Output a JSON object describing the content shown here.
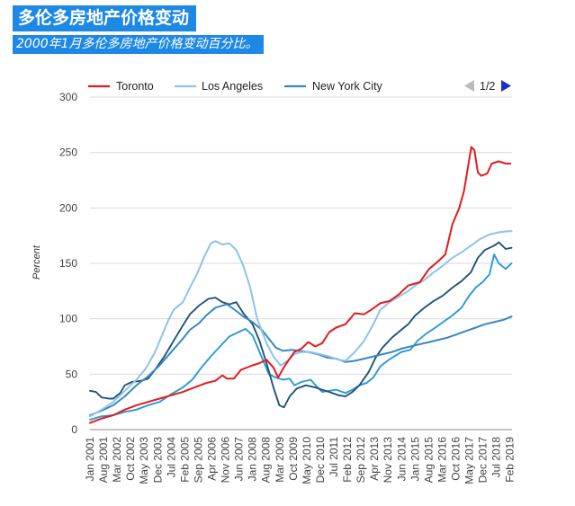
{
  "header": {
    "title": "多伦多房地产价格变动",
    "subtitle": "2000年1月多伦多房地产价格变动百分比。"
  },
  "legend": {
    "pager": "1/2"
  },
  "colors": {
    "toronto": "#e31b1b",
    "la": "#8cc4ea",
    "nyc": "#3b87c2",
    "s4": "#1f5578",
    "s5": "#2a9ad6",
    "grid": "#d9d9d9",
    "pager_prev": "#bbbbbb",
    "pager_next": "#1a2fc8"
  },
  "chart_data": {
    "type": "line",
    "ylabel": "Percent",
    "ylim": [
      0,
      300
    ],
    "yticks": [
      0,
      50,
      100,
      150,
      200,
      250,
      300
    ],
    "xlim": [
      2001.0,
      2019.17
    ],
    "xticks": [
      {
        "label": "Jan 2001",
        "t": 2001.0
      },
      {
        "label": "Aug 2001",
        "t": 2001.58
      },
      {
        "label": "Mar 2002",
        "t": 2002.17
      },
      {
        "label": "Oct 2002",
        "t": 2002.75
      },
      {
        "label": "May 2003",
        "t": 2003.33
      },
      {
        "label": "Dec 2003",
        "t": 2003.92
      },
      {
        "label": "Jul 2004",
        "t": 2004.5
      },
      {
        "label": "Feb 2005",
        "t": 2005.08
      },
      {
        "label": "Sep 2005",
        "t": 2005.67
      },
      {
        "label": "Apr 2006",
        "t": 2006.25
      },
      {
        "label": "Nov 2006",
        "t": 2006.83
      },
      {
        "label": "Jun 2007",
        "t": 2007.42
      },
      {
        "label": "Jan 2008",
        "t": 2008.0
      },
      {
        "label": "Aug 2008",
        "t": 2008.58
      },
      {
        "label": "Mar 2009",
        "t": 2009.17
      },
      {
        "label": "Oct 2009",
        "t": 2009.75
      },
      {
        "label": "May 2010",
        "t": 2010.33
      },
      {
        "label": "Dec 2010",
        "t": 2010.92
      },
      {
        "label": "Jul 2011",
        "t": 2011.5
      },
      {
        "label": "Feb 2012",
        "t": 2012.08
      },
      {
        "label": "Sep 2012",
        "t": 2012.67
      },
      {
        "label": "Apr 2013",
        "t": 2013.25
      },
      {
        "label": "Nov 2013",
        "t": 2013.83
      },
      {
        "label": "Jun 2014",
        "t": 2014.42
      },
      {
        "label": "Jan 2015",
        "t": 2015.0
      },
      {
        "label": "Aug 2015",
        "t": 2015.58
      },
      {
        "label": "Mar 2016",
        "t": 2016.17
      },
      {
        "label": "Oct 2016",
        "t": 2016.75
      },
      {
        "label": "May 2017",
        "t": 2017.33
      },
      {
        "label": "Dec 2017",
        "t": 2017.92
      },
      {
        "label": "Jul 2018",
        "t": 2018.5
      },
      {
        "label": "Feb 2019",
        "t": 2019.08
      }
    ],
    "series": [
      {
        "name": "Toronto",
        "colorKey": "toronto",
        "width": 2.0,
        "points": [
          [
            2001.0,
            6
          ],
          [
            2001.5,
            10
          ],
          [
            2002.0,
            13
          ],
          [
            2002.5,
            18
          ],
          [
            2003.0,
            22
          ],
          [
            2003.5,
            25
          ],
          [
            2004.0,
            28
          ],
          [
            2004.5,
            31
          ],
          [
            2005.0,
            34
          ],
          [
            2005.5,
            38
          ],
          [
            2006.0,
            42
          ],
          [
            2006.4,
            44
          ],
          [
            2006.7,
            49
          ],
          [
            2006.9,
            46
          ],
          [
            2007.2,
            46
          ],
          [
            2007.5,
            54
          ],
          [
            2008.0,
            58
          ],
          [
            2008.3,
            60
          ],
          [
            2008.6,
            63
          ],
          [
            2008.9,
            56
          ],
          [
            2009.1,
            47
          ],
          [
            2009.4,
            58
          ],
          [
            2009.8,
            70
          ],
          [
            2010.1,
            73
          ],
          [
            2010.4,
            79
          ],
          [
            2010.7,
            75
          ],
          [
            2011.0,
            78
          ],
          [
            2011.3,
            88
          ],
          [
            2011.6,
            92
          ],
          [
            2012.0,
            95
          ],
          [
            2012.4,
            105
          ],
          [
            2012.8,
            104
          ],
          [
            2013.1,
            108
          ],
          [
            2013.5,
            114
          ],
          [
            2013.9,
            116
          ],
          [
            2014.3,
            122
          ],
          [
            2014.7,
            130
          ],
          [
            2015.2,
            133
          ],
          [
            2015.6,
            145
          ],
          [
            2016.0,
            152
          ],
          [
            2016.3,
            158
          ],
          [
            2016.6,
            185
          ],
          [
            2016.9,
            200
          ],
          [
            2017.1,
            215
          ],
          [
            2017.3,
            240
          ],
          [
            2017.42,
            255
          ],
          [
            2017.55,
            252
          ],
          [
            2017.7,
            232
          ],
          [
            2017.85,
            229
          ],
          [
            2018.1,
            231
          ],
          [
            2018.3,
            240
          ],
          [
            2018.6,
            242
          ],
          [
            2018.9,
            240
          ],
          [
            2019.1,
            240
          ]
        ]
      },
      {
        "name": "Los Angeles",
        "colorKey": "la",
        "width": 2.0,
        "points": [
          [
            2001.0,
            12
          ],
          [
            2001.5,
            18
          ],
          [
            2002.0,
            25
          ],
          [
            2002.5,
            35
          ],
          [
            2003.0,
            45
          ],
          [
            2003.4,
            55
          ],
          [
            2003.8,
            70
          ],
          [
            2004.1,
            85
          ],
          [
            2004.4,
            100
          ],
          [
            2004.6,
            108
          ],
          [
            2005.0,
            115
          ],
          [
            2005.3,
            128
          ],
          [
            2005.6,
            140
          ],
          [
            2005.9,
            155
          ],
          [
            2006.2,
            168
          ],
          [
            2006.4,
            170
          ],
          [
            2006.7,
            167
          ],
          [
            2007.0,
            168
          ],
          [
            2007.3,
            162
          ],
          [
            2007.6,
            148
          ],
          [
            2007.9,
            128
          ],
          [
            2008.2,
            100
          ],
          [
            2008.6,
            78
          ],
          [
            2008.9,
            66
          ],
          [
            2009.2,
            58
          ],
          [
            2009.5,
            62
          ],
          [
            2009.8,
            68
          ],
          [
            2010.1,
            70
          ],
          [
            2010.5,
            70
          ],
          [
            2010.9,
            68
          ],
          [
            2011.3,
            66
          ],
          [
            2011.7,
            63
          ],
          [
            2012.0,
            62
          ],
          [
            2012.4,
            70
          ],
          [
            2012.8,
            80
          ],
          [
            2013.2,
            95
          ],
          [
            2013.5,
            108
          ],
          [
            2013.9,
            115
          ],
          [
            2014.3,
            120
          ],
          [
            2014.7,
            125
          ],
          [
            2015.0,
            130
          ],
          [
            2015.4,
            135
          ],
          [
            2015.8,
            142
          ],
          [
            2016.2,
            148
          ],
          [
            2016.6,
            155
          ],
          [
            2017.0,
            160
          ],
          [
            2017.4,
            166
          ],
          [
            2017.8,
            172
          ],
          [
            2018.2,
            176
          ],
          [
            2018.6,
            178
          ],
          [
            2019.0,
            179
          ],
          [
            2019.15,
            179
          ]
        ]
      },
      {
        "name": "New York City",
        "colorKey": "nyc",
        "width": 2.0,
        "points": [
          [
            2001.0,
            13
          ],
          [
            2001.5,
            17
          ],
          [
            2002.0,
            22
          ],
          [
            2002.5,
            30
          ],
          [
            2003.0,
            40
          ],
          [
            2003.5,
            48
          ],
          [
            2004.0,
            58
          ],
          [
            2004.5,
            70
          ],
          [
            2005.0,
            82
          ],
          [
            2005.3,
            90
          ],
          [
            2005.7,
            96
          ],
          [
            2006.0,
            103
          ],
          [
            2006.4,
            110
          ],
          [
            2006.9,
            113
          ],
          [
            2007.3,
            107
          ],
          [
            2007.6,
            102
          ],
          [
            2008.0,
            97
          ],
          [
            2008.4,
            90
          ],
          [
            2008.7,
            82
          ],
          [
            2009.0,
            74
          ],
          [
            2009.3,
            71
          ],
          [
            2009.7,
            72
          ],
          [
            2010.0,
            71
          ],
          [
            2010.4,
            70
          ],
          [
            2010.8,
            68
          ],
          [
            2011.2,
            65
          ],
          [
            2011.6,
            64
          ],
          [
            2012.0,
            61
          ],
          [
            2012.4,
            62
          ],
          [
            2012.8,
            64
          ],
          [
            2013.2,
            66
          ],
          [
            2013.6,
            68
          ],
          [
            2014.0,
            70
          ],
          [
            2014.4,
            73
          ],
          [
            2014.8,
            75
          ],
          [
            2015.2,
            77
          ],
          [
            2015.6,
            79
          ],
          [
            2016.0,
            81
          ],
          [
            2016.4,
            83
          ],
          [
            2016.8,
            86
          ],
          [
            2017.2,
            89
          ],
          [
            2017.6,
            92
          ],
          [
            2018.0,
            95
          ],
          [
            2018.4,
            97
          ],
          [
            2018.8,
            99
          ],
          [
            2019.15,
            102
          ]
        ]
      },
      {
        "name": "",
        "colorKey": "s4",
        "width": 1.9,
        "points": [
          [
            2001.0,
            35
          ],
          [
            2001.25,
            34
          ],
          [
            2001.5,
            29
          ],
          [
            2001.8,
            28
          ],
          [
            2002.0,
            28
          ],
          [
            2002.3,
            33
          ],
          [
            2002.5,
            40
          ],
          [
            2002.8,
            43
          ],
          [
            2003.2,
            44
          ],
          [
            2003.5,
            46
          ],
          [
            2003.8,
            54
          ],
          [
            2004.2,
            66
          ],
          [
            2004.6,
            80
          ],
          [
            2005.0,
            94
          ],
          [
            2005.3,
            104
          ],
          [
            2005.7,
            112
          ],
          [
            2006.1,
            118
          ],
          [
            2006.4,
            119
          ],
          [
            2006.7,
            115
          ],
          [
            2007.0,
            113
          ],
          [
            2007.3,
            115
          ],
          [
            2007.6,
            105
          ],
          [
            2008.0,
            95
          ],
          [
            2008.3,
            80
          ],
          [
            2008.6,
            60
          ],
          [
            2008.9,
            38
          ],
          [
            2009.15,
            22
          ],
          [
            2009.35,
            20
          ],
          [
            2009.6,
            30
          ],
          [
            2009.9,
            37
          ],
          [
            2010.3,
            40
          ],
          [
            2010.7,
            38
          ],
          [
            2011.0,
            36
          ],
          [
            2011.3,
            34
          ],
          [
            2011.7,
            31
          ],
          [
            2012.0,
            30
          ],
          [
            2012.3,
            34
          ],
          [
            2012.6,
            40
          ],
          [
            2013.0,
            52
          ],
          [
            2013.3,
            65
          ],
          [
            2013.6,
            74
          ],
          [
            2014.0,
            83
          ],
          [
            2014.4,
            90
          ],
          [
            2014.7,
            95
          ],
          [
            2015.0,
            103
          ],
          [
            2015.4,
            110
          ],
          [
            2015.8,
            116
          ],
          [
            2016.2,
            121
          ],
          [
            2016.6,
            128
          ],
          [
            2017.0,
            134
          ],
          [
            2017.4,
            142
          ],
          [
            2017.7,
            155
          ],
          [
            2018.0,
            162
          ],
          [
            2018.4,
            166
          ],
          [
            2018.6,
            169
          ],
          [
            2018.9,
            163
          ],
          [
            2019.15,
            164
          ]
        ]
      },
      {
        "name": "",
        "colorKey": "s5",
        "width": 1.9,
        "points": [
          [
            2001.0,
            9
          ],
          [
            2001.5,
            12
          ],
          [
            2002.0,
            13
          ],
          [
            2002.5,
            16
          ],
          [
            2003.0,
            18
          ],
          [
            2003.5,
            22
          ],
          [
            2004.0,
            25
          ],
          [
            2004.5,
            32
          ],
          [
            2005.0,
            38
          ],
          [
            2005.4,
            45
          ],
          [
            2005.8,
            56
          ],
          [
            2006.2,
            66
          ],
          [
            2006.6,
            75
          ],
          [
            2007.0,
            84
          ],
          [
            2007.4,
            88
          ],
          [
            2007.7,
            91
          ],
          [
            2008.0,
            85
          ],
          [
            2008.4,
            65
          ],
          [
            2008.7,
            50
          ],
          [
            2009.0,
            47
          ],
          [
            2009.3,
            45
          ],
          [
            2009.6,
            46
          ],
          [
            2009.8,
            40
          ],
          [
            2010.1,
            43
          ],
          [
            2010.5,
            45
          ],
          [
            2010.8,
            38
          ],
          [
            2011.0,
            34
          ],
          [
            2011.3,
            35
          ],
          [
            2011.6,
            36
          ],
          [
            2012.0,
            33
          ],
          [
            2012.3,
            36
          ],
          [
            2012.6,
            40
          ],
          [
            2012.9,
            42
          ],
          [
            2013.2,
            47
          ],
          [
            2013.5,
            57
          ],
          [
            2013.8,
            62
          ],
          [
            2014.1,
            66
          ],
          [
            2014.4,
            70
          ],
          [
            2014.8,
            72
          ],
          [
            2015.1,
            80
          ],
          [
            2015.5,
            87
          ],
          [
            2015.8,
            91
          ],
          [
            2016.2,
            97
          ],
          [
            2016.6,
            103
          ],
          [
            2017.0,
            110
          ],
          [
            2017.3,
            120
          ],
          [
            2017.6,
            128
          ],
          [
            2017.9,
            133
          ],
          [
            2018.2,
            140
          ],
          [
            2018.4,
            158
          ],
          [
            2018.6,
            150
          ],
          [
            2018.9,
            145
          ],
          [
            2019.15,
            150
          ]
        ]
      }
    ]
  }
}
